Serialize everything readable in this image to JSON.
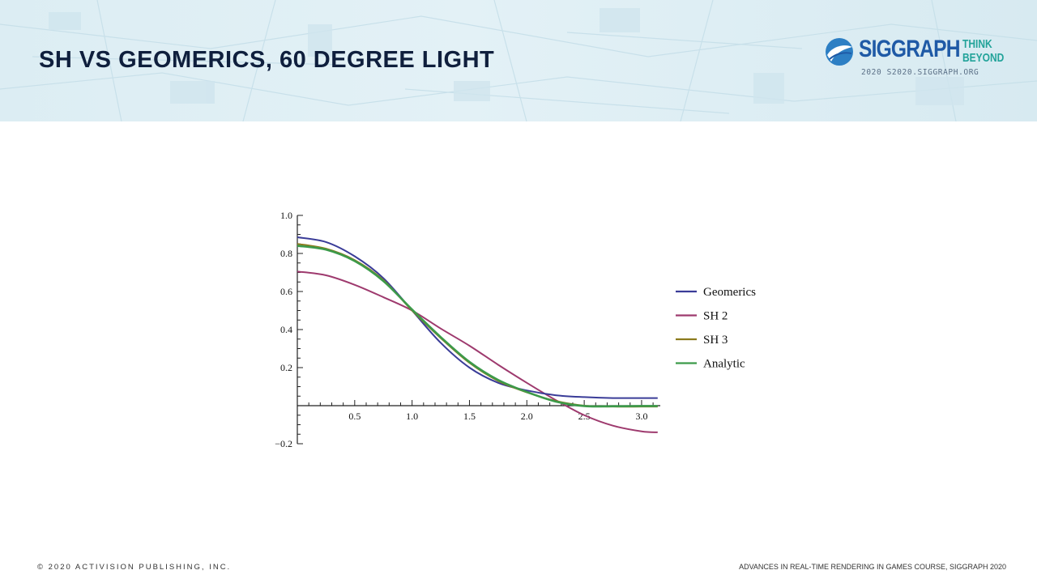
{
  "slide": {
    "title": "SH VS GEOMERICS, 60 DEGREE LIGHT",
    "footer_left": "© 2020 ACTIVISION PUBLISHING, INC.",
    "footer_right": "ADVANCES IN REAL-TIME RENDERING IN GAMES COURSE, SIGGRAPH 2020"
  },
  "logo": {
    "wordmark": "SIGGRAPH",
    "tagline_1": "THINK",
    "tagline_2": "BEYOND",
    "sub": "2020  S2020.SIGGRAPH.ORG",
    "colors": {
      "wordmark": "#1f5aa6",
      "tagline": "#22a39a"
    }
  },
  "chart_data": {
    "type": "line",
    "title": "",
    "xlabel": "",
    "ylabel": "",
    "xlim": [
      0,
      3.14159
    ],
    "ylim": [
      -0.2,
      1.0
    ],
    "xticks": [
      "0.5",
      "1.0",
      "1.5",
      "2.0",
      "2.5",
      "3.0"
    ],
    "yticks": [
      "-0.2",
      "0.2",
      "0.4",
      "0.6",
      "0.8",
      "1.0"
    ],
    "grid": false,
    "legend_position": "right",
    "x": [
      0,
      0.25,
      0.5,
      0.75,
      1.0,
      1.25,
      1.5,
      1.75,
      2.0,
      2.25,
      2.5,
      2.75,
      3.0,
      3.14
    ],
    "series": [
      {
        "name": "Geomerics",
        "color": "#3a3c98",
        "values": [
          0.885,
          0.86,
          0.785,
          0.67,
          0.5,
          0.33,
          0.2,
          0.12,
          0.08,
          0.055,
          0.045,
          0.04,
          0.04,
          0.04
        ]
      },
      {
        "name": "SH 2",
        "color": "#9e3a6e",
        "values": [
          0.705,
          0.685,
          0.635,
          0.57,
          0.5,
          0.405,
          0.315,
          0.215,
          0.12,
          0.03,
          -0.05,
          -0.105,
          -0.135,
          -0.14
        ]
      },
      {
        "name": "SH 3",
        "color": "#8c7b1e",
        "values": [
          0.85,
          0.825,
          0.765,
          0.66,
          0.5,
          0.355,
          0.225,
          0.13,
          0.07,
          0.025,
          0.0,
          -0.005,
          -0.005,
          -0.005
        ]
      },
      {
        "name": "Analytic",
        "color": "#3c9a4a",
        "values": [
          0.84,
          0.82,
          0.76,
          0.655,
          0.505,
          0.36,
          0.23,
          0.135,
          0.072,
          0.022,
          -0.002,
          -0.003,
          -0.002,
          -0.002
        ]
      }
    ]
  }
}
